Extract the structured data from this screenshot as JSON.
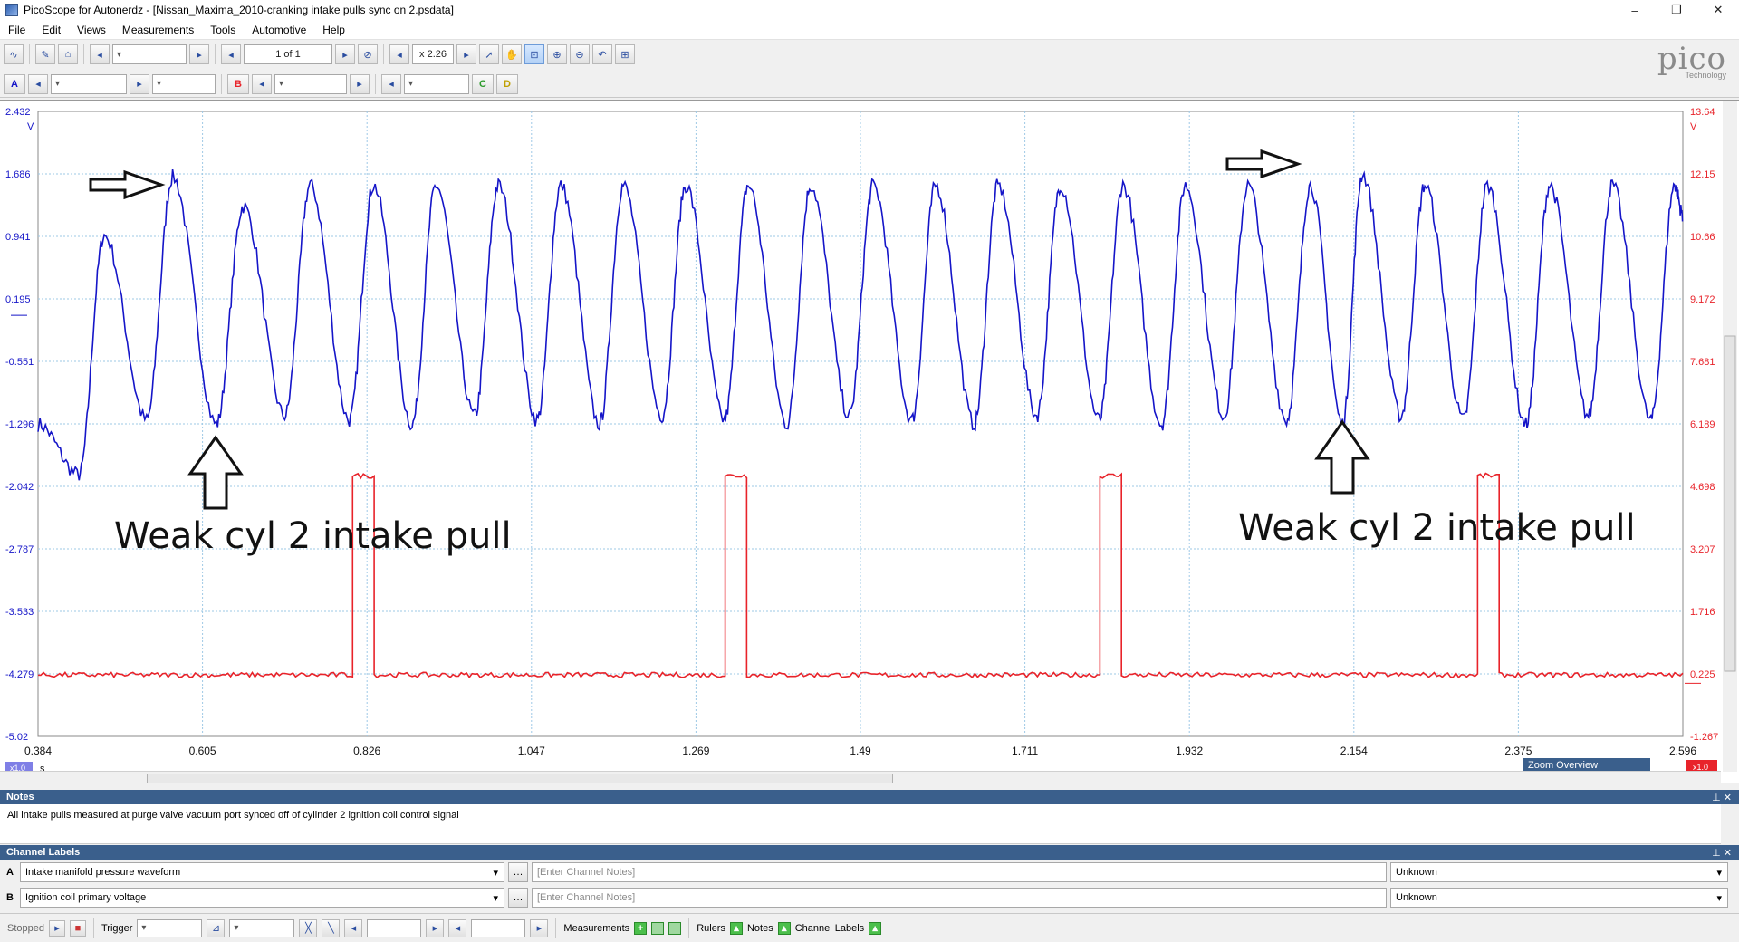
{
  "window": {
    "title": "PicoScope for Autonerdz - [Nissan_Maxima_2010-cranking intake pulls sync on 2.psdata]",
    "minimize": "–",
    "restore": "❐",
    "close": "✕"
  },
  "menu": [
    "File",
    "Edit",
    "Views",
    "Measurements",
    "Tools",
    "Automotive",
    "Help"
  ],
  "toolbar": {
    "buffer": "1 of 1",
    "zoom": "x 2.26"
  },
  "channels_bar": {
    "a": "A",
    "b": "B",
    "c": "C",
    "d": "D"
  },
  "logo": {
    "brand": "pico",
    "sub": "Technology"
  },
  "chart_data": {
    "type": "line",
    "x_axis": {
      "ticks": [
        "0.384",
        "0.605",
        "0.826",
        "1.047",
        "1.269",
        "1.49",
        "1.711",
        "1.932",
        "2.154",
        "2.375",
        "2.596"
      ],
      "unit": "s",
      "range": [
        0.384,
        2.596
      ],
      "scale_label": "x1.0"
    },
    "y_left": {
      "ticks": [
        "2.432",
        "1.686",
        "0.941",
        "0.195",
        "-0.551",
        "-1.296",
        "-2.042",
        "-2.787",
        "-3.533",
        "-4.279",
        "-5.02"
      ],
      "unit": "V",
      "range": [
        -5.024,
        2.432
      ],
      "color": "#1515c8"
    },
    "y_right": {
      "ticks": [
        "13.64",
        "12.15",
        "10.66",
        "9.172",
        "7.681",
        "6.189",
        "4.698",
        "3.207",
        "1.716",
        "0.225",
        "-1.267"
      ],
      "unit": "V",
      "range": [
        -1.267,
        13.64
      ],
      "color": "#e8232a",
      "scale_label": "x1.0"
    },
    "grid": true,
    "series": [
      {
        "name": "Intake manifold pressure waveform",
        "channel": "A",
        "color": "#1515c8",
        "peaks_x": [
          0.473,
          0.565,
          0.66,
          0.75,
          0.835,
          0.919,
          1.003,
          1.087,
          1.171,
          1.255,
          1.339,
          1.423,
          1.507,
          1.591,
          1.675,
          1.759,
          1.843,
          1.927,
          2.011,
          2.095,
          2.165,
          2.249,
          2.333,
          2.417,
          2.501,
          2.585
        ],
        "peak_v": [
          0.95,
          1.65,
          1.3,
          1.55,
          1.55,
          1.55,
          1.55,
          1.55,
          1.55,
          1.55,
          1.55,
          1.55,
          1.55,
          1.55,
          1.55,
          1.55,
          1.55,
          1.55,
          1.55,
          1.55,
          1.68,
          1.55,
          1.55,
          1.55,
          1.55,
          1.55
        ],
        "trough_v": -1.2
      },
      {
        "name": "Ignition coil primary voltage",
        "channel": "B",
        "color": "#e8232a",
        "baseline_v": 0.2,
        "pulse_v": 4.95,
        "pulses_x": [
          [
            0.807,
            0.836
          ],
          [
            1.308,
            1.337
          ],
          [
            1.812,
            1.841
          ],
          [
            2.32,
            2.349
          ]
        ]
      }
    ],
    "annotations": [
      {
        "text": "Weak cyl 2 intake pull"
      },
      {
        "text": "Weak cyl 2 intake pull"
      }
    ],
    "zoom_overview": "Zoom Overview"
  },
  "notes": {
    "header": "Notes",
    "text": "All intake pulls measured at purge valve vacuum port synced off of cylinder 2 ignition coil control signal"
  },
  "channel_labels": {
    "header": "Channel Labels",
    "rows": [
      {
        "channel": "A",
        "name": "Intake manifold pressure waveform",
        "notes_placeholder": "[Enter Channel Notes]",
        "status": "Unknown"
      },
      {
        "channel": "B",
        "name": "Ignition coil primary voltage",
        "notes_placeholder": "[Enter Channel Notes]",
        "status": "Unknown"
      }
    ]
  },
  "status": {
    "state": "Stopped",
    "trigger": "Trigger",
    "measurements": "Measurements",
    "rulers": "Rulers",
    "notes": "Notes",
    "channel_labels": "Channel Labels"
  }
}
